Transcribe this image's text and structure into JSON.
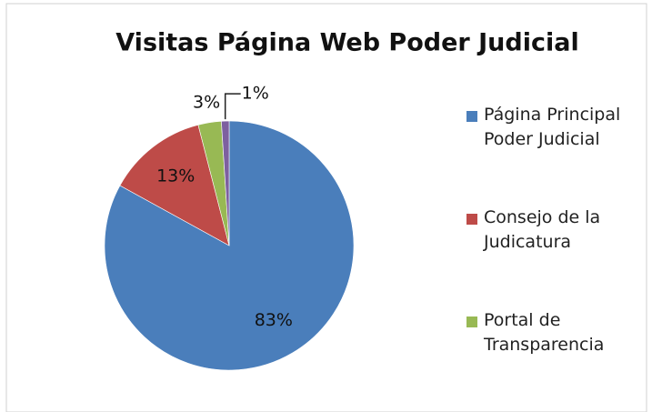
{
  "chart_data": {
    "type": "pie",
    "title": "Visitas Página Web Poder Judicial",
    "categories": [
      "Página Principal Poder Judicial",
      "Consejo de la Judicatura",
      "Portal de Transparencia",
      null
    ],
    "values": [
      83,
      13,
      3,
      1
    ],
    "value_labels": [
      "83%",
      "13%",
      "3%",
      "1%"
    ],
    "colors": [
      "#4a7ebb",
      "#be4b48",
      "#98b954",
      "#7d60a0"
    ],
    "legend": "right"
  }
}
